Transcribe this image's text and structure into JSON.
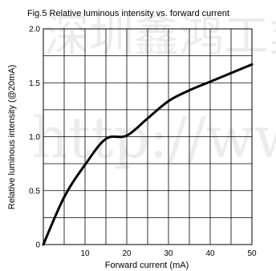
{
  "chart_data": {
    "type": "line",
    "title": "Fig.5 Relative luminous intensity vs. forward current",
    "xlabel": "Forward current (mA)",
    "ylabel": "Relative luminous intensity (@20mA)",
    "xlim": [
      0,
      50
    ],
    "ylim": [
      0,
      2.0
    ],
    "x_ticks": [
      10,
      20,
      30,
      40,
      50
    ],
    "x_tick_labels": [
      "10",
      "20",
      "30",
      "40",
      "50"
    ],
    "y_ticks": [
      0,
      0.5,
      1.0,
      1.5,
      2.0
    ],
    "y_tick_labels": [
      "0",
      "0.5",
      "1.0",
      "1.5",
      "2.0"
    ],
    "grid": true,
    "grid_x_step": 5,
    "grid_y_step": 0.25,
    "series": [
      {
        "x": [
          0,
          5,
          10,
          15,
          20,
          25,
          30,
          35,
          40,
          45,
          50
        ],
        "y": [
          0,
          0.44,
          0.74,
          0.98,
          1.01,
          1.17,
          1.33,
          1.43,
          1.51,
          1.59,
          1.67
        ],
        "color": "#000000"
      }
    ]
  },
  "watermark": {
    "line1": "深圳鑫鸿工業",
    "line2": "http://www"
  }
}
